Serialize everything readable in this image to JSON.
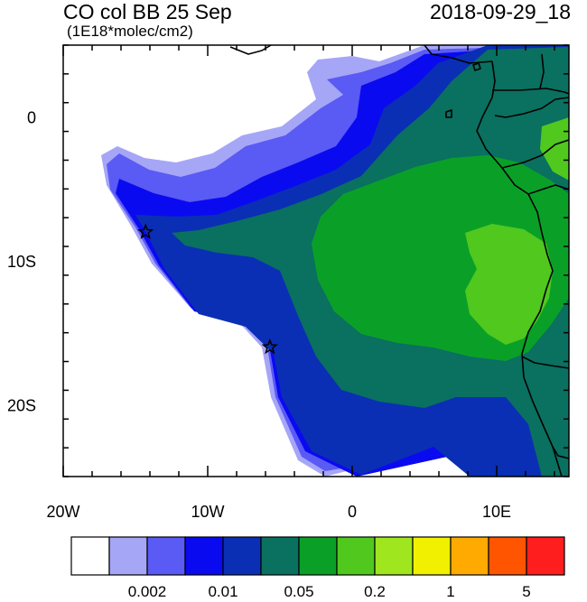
{
  "title": "CO col BB 25 Sep",
  "units": "(1E18*molec/cm2)",
  "valid_time": "2018-09-29_18",
  "map": {
    "lon_range": [
      -20,
      15
    ],
    "lat_range": [
      -25,
      5
    ],
    "lon_ticks": [
      {
        "lon": -20,
        "label": "20W"
      },
      {
        "lon": -10,
        "label": "10W"
      },
      {
        "lon": 0,
        "label": "0"
      },
      {
        "lon": 10,
        "label": "10E"
      }
    ],
    "lat_ticks": [
      {
        "lat": 0,
        "label": "0"
      },
      {
        "lat": -10,
        "label": "10S"
      },
      {
        "lat": -20,
        "label": "20S"
      }
    ],
    "markers": [
      {
        "name": "station-star-north",
        "lon": -14.3,
        "lat": -8.0
      },
      {
        "name": "station-star-south",
        "lon": -5.7,
        "lat": -16.0
      }
    ]
  },
  "colorbar": {
    "colors": [
      "#ffffff",
      "#a6a6f7",
      "#5a5af5",
      "#0a0af0",
      "#0a2fb4",
      "#0a7060",
      "#0aa028",
      "#50c81e",
      "#a0e61e",
      "#f0f000",
      "#ffaa00",
      "#ff5500",
      "#ff1e1e"
    ],
    "labels": [
      {
        "text": "0.002",
        "after_box": 2
      },
      {
        "text": "0.01",
        "after_box": 4
      },
      {
        "text": "0.05",
        "after_box": 6
      },
      {
        "text": "0.2",
        "after_box": 8
      },
      {
        "text": "1",
        "after_box": 10
      },
      {
        "text": "5",
        "after_box": 12
      }
    ]
  }
}
